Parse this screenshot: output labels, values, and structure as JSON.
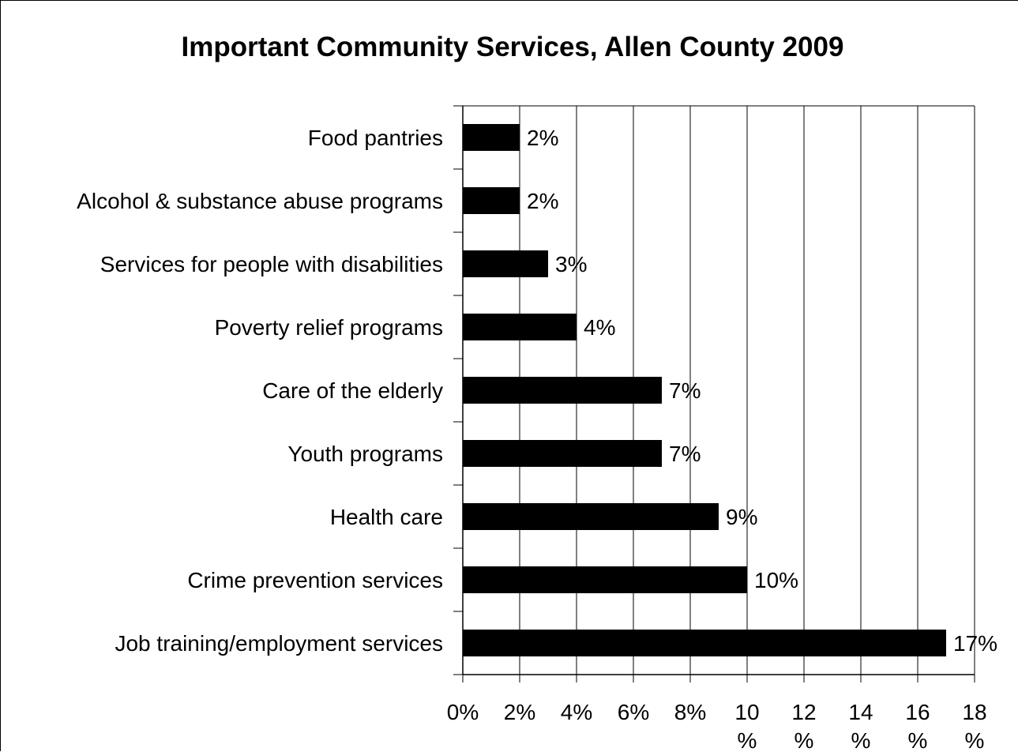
{
  "chart_data": {
    "type": "bar",
    "orientation": "horizontal",
    "title": "Important Community Services, Allen County 2009",
    "xlabel": "",
    "ylabel": "",
    "categories": [
      "Food pantries",
      "Alcohol & substance abuse programs",
      "Services for people with disabilities",
      "Poverty relief programs",
      "Care of the elderly",
      "Youth programs",
      "Health care",
      "Crime prevention services",
      "Job training/employment services"
    ],
    "values": [
      2,
      2,
      3,
      4,
      7,
      7,
      9,
      10,
      17
    ],
    "value_labels": [
      "2%",
      "2%",
      "3%",
      "4%",
      "7%",
      "7%",
      "9%",
      "10%",
      "17%"
    ],
    "xlim": [
      0,
      18
    ],
    "x_ticks": [
      0,
      2,
      4,
      6,
      8,
      10,
      12,
      14,
      16,
      18
    ],
    "x_tick_labels": [
      [
        "0%"
      ],
      [
        "2%"
      ],
      [
        "4%"
      ],
      [
        "6%"
      ],
      [
        "8%"
      ],
      [
        "10",
        "%"
      ],
      [
        "12",
        "%"
      ],
      [
        "14",
        "%"
      ],
      [
        "16",
        "%"
      ],
      [
        "18",
        "%"
      ]
    ],
    "grid": "vertical",
    "legend": "none",
    "colors": {
      "bar": "#000000",
      "grid": "#000000",
      "text": "#000000",
      "background": "#ffffff"
    }
  }
}
